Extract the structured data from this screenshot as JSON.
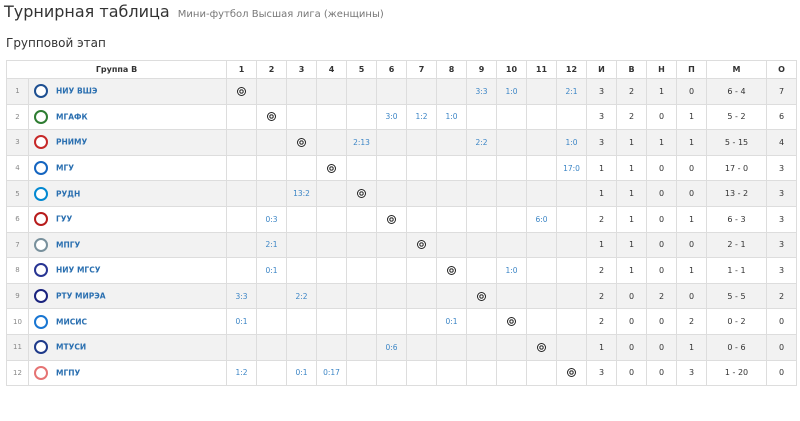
{
  "header": {
    "title": "Турнирная таблица",
    "subtitle": "Мини-футбол Высшая лига (женщины)",
    "stage": "Групповой этап"
  },
  "table": {
    "columns": [
      "Группа В",
      "1",
      "2",
      "3",
      "4",
      "5",
      "6",
      "7",
      "8",
      "9",
      "10",
      "11",
      "12",
      "И",
      "В",
      "Н",
      "П",
      "М",
      "О"
    ],
    "rows": [
      {
        "rank": 1,
        "team": "НИУ ВШЭ",
        "results": [
          null,
          null,
          null,
          null,
          null,
          null,
          null,
          null,
          "3:3",
          "1:0",
          null,
          "2:1"
        ],
        "stats": [
          3,
          2,
          1,
          0,
          "6 - 4",
          7
        ]
      },
      {
        "rank": 2,
        "team": "МГАФК",
        "results": [
          null,
          null,
          null,
          null,
          null,
          "3:0",
          "1:2",
          "1:0",
          null,
          null,
          null,
          null
        ],
        "stats": [
          3,
          2,
          0,
          1,
          "5 - 2",
          6
        ]
      },
      {
        "rank": 3,
        "team": "РНИМУ",
        "results": [
          null,
          null,
          null,
          null,
          "2:13",
          null,
          null,
          null,
          "2:2",
          null,
          null,
          "1:0"
        ],
        "stats": [
          3,
          1,
          1,
          1,
          "5 - 15",
          4
        ]
      },
      {
        "rank": 4,
        "team": "МГУ",
        "results": [
          null,
          null,
          null,
          null,
          null,
          null,
          null,
          null,
          null,
          null,
          null,
          "17:0"
        ],
        "stats": [
          1,
          1,
          0,
          0,
          "17 - 0",
          3
        ]
      },
      {
        "rank": 5,
        "team": "РУДН",
        "results": [
          null,
          null,
          "13:2",
          null,
          null,
          null,
          null,
          null,
          null,
          null,
          null,
          null
        ],
        "stats": [
          1,
          1,
          0,
          0,
          "13 - 2",
          3
        ]
      },
      {
        "rank": 6,
        "team": "ГУУ",
        "results": [
          null,
          "0:3",
          null,
          null,
          null,
          null,
          null,
          null,
          null,
          null,
          "6:0",
          null
        ],
        "stats": [
          2,
          1,
          0,
          1,
          "6 - 3",
          3
        ]
      },
      {
        "rank": 7,
        "team": "МПГУ",
        "results": [
          null,
          "2:1",
          null,
          null,
          null,
          null,
          null,
          null,
          null,
          null,
          null,
          null
        ],
        "stats": [
          1,
          1,
          0,
          0,
          "2 - 1",
          3
        ]
      },
      {
        "rank": 8,
        "team": "НИУ МГСУ",
        "results": [
          null,
          "0:1",
          null,
          null,
          null,
          null,
          null,
          null,
          null,
          "1:0",
          null,
          null
        ],
        "stats": [
          2,
          1,
          0,
          1,
          "1 - 1",
          3
        ]
      },
      {
        "rank": 9,
        "team": "РТУ МИРЭА",
        "results": [
          "3:3",
          null,
          "2:2",
          null,
          null,
          null,
          null,
          null,
          null,
          null,
          null,
          null
        ],
        "stats": [
          2,
          0,
          2,
          0,
          "5 - 5",
          2
        ]
      },
      {
        "rank": 10,
        "team": "МИСИС",
        "results": [
          "0:1",
          null,
          null,
          null,
          null,
          null,
          null,
          "0:1",
          null,
          null,
          null,
          null
        ],
        "stats": [
          2,
          0,
          0,
          2,
          "0 - 2",
          0
        ]
      },
      {
        "rank": 11,
        "team": "МТУСИ",
        "results": [
          null,
          null,
          null,
          null,
          null,
          "0:6",
          null,
          null,
          null,
          null,
          null,
          null
        ],
        "stats": [
          1,
          0,
          0,
          1,
          "0 - 6",
          0
        ]
      },
      {
        "rank": 12,
        "team": "МГПУ",
        "results": [
          "1:2",
          null,
          "0:1",
          "0:17",
          null,
          null,
          null,
          null,
          null,
          null,
          null,
          null
        ],
        "stats": [
          3,
          0,
          0,
          3,
          "1 - 20",
          0
        ]
      }
    ]
  }
}
